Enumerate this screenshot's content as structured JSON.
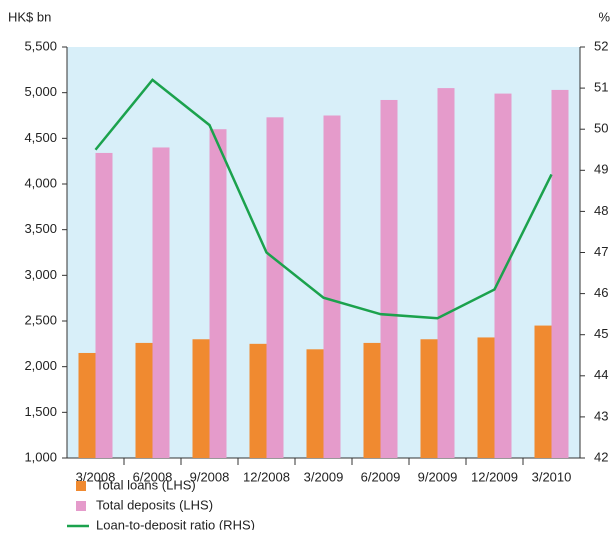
{
  "chart_data": {
    "type": "bar-line",
    "y_label": "HK$ bn",
    "y2_label": "%",
    "categories": [
      "3/2008",
      "6/2008",
      "9/2008",
      "12/2008",
      "3/2009",
      "6/2009",
      "9/2009",
      "12/2009",
      "3/2010"
    ],
    "series": [
      {
        "name": "Total loans (LHS)",
        "color": "#f08a30",
        "type": "bar",
        "values": [
          2150,
          2260,
          2300,
          2250,
          2190,
          2260,
          2300,
          2320,
          2450
        ]
      },
      {
        "name": "Total deposits (LHS)",
        "color": "#e59bcb",
        "type": "bar",
        "values": [
          4340,
          4400,
          4600,
          4730,
          4750,
          4920,
          5050,
          4990,
          5030
        ]
      },
      {
        "name": "Loan-to-deposit ratio (RHS)",
        "color": "#1ba24d",
        "type": "line",
        "axis": "y2",
        "values": [
          49.5,
          51.2,
          50.1,
          47.0,
          45.9,
          45.5,
          45.4,
          46.1,
          48.9
        ]
      }
    ],
    "ylim": [
      1000,
      5500
    ],
    "yticks": [
      {
        "value": 1000,
        "label": "1,000"
      },
      {
        "value": 1500,
        "label": "1,500"
      },
      {
        "value": 2000,
        "label": "2,000"
      },
      {
        "value": 2500,
        "label": "2,500"
      },
      {
        "value": 3000,
        "label": "3,000"
      },
      {
        "value": 3500,
        "label": "3,500"
      },
      {
        "value": 4000,
        "label": "4,000"
      },
      {
        "value": 4500,
        "label": "4,500"
      },
      {
        "value": 5000,
        "label": "5,000"
      },
      {
        "value": 5500,
        "label": "5,500"
      }
    ],
    "y2lim": [
      42,
      52
    ],
    "y2ticks": [
      42,
      43,
      44,
      45,
      46,
      47,
      48,
      49,
      50,
      51,
      52
    ]
  }
}
